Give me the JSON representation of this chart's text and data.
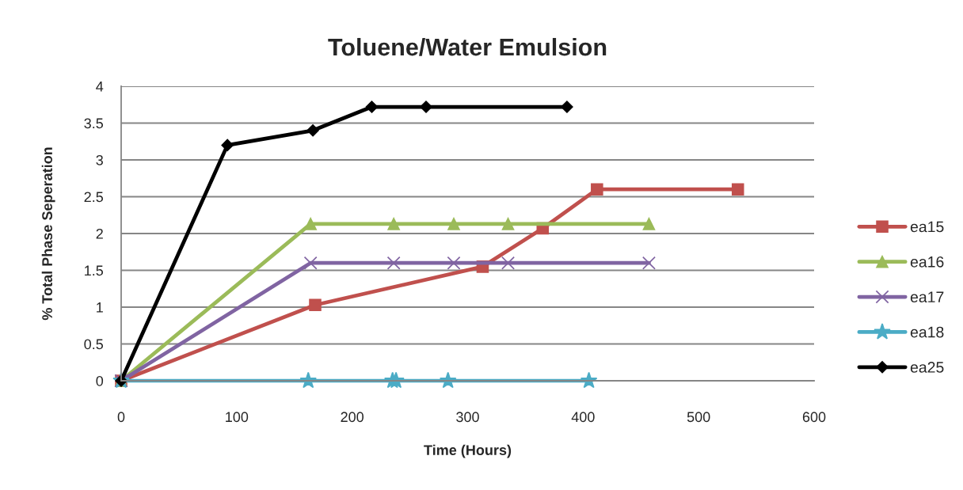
{
  "chart_data": {
    "type": "line",
    "title": "Toluene/Water Emulsion",
    "xlabel": "Time (Hours)",
    "ylabel": "% Total Phase Seperation",
    "xlim": [
      0,
      600
    ],
    "xticks": [
      0,
      100,
      200,
      300,
      400,
      500,
      600
    ],
    "ylim": [
      0,
      4
    ],
    "yticks": [
      0,
      0.5,
      1,
      1.5,
      2,
      2.5,
      3,
      3.5,
      4
    ],
    "grid": "y",
    "legend": "right",
    "line_style": "solid",
    "series": [
      {
        "name": "ea15",
        "color": "#c0504d",
        "marker": "square",
        "x": [
          0,
          168,
          313,
          365,
          412,
          534
        ],
        "values": [
          0,
          1.03,
          1.55,
          2.07,
          2.6,
          2.6
        ]
      },
      {
        "name": "ea16",
        "color": "#9bbb59",
        "marker": "triangle",
        "x": [
          0,
          164,
          236,
          288,
          335,
          457
        ],
        "values": [
          0,
          2.13,
          2.13,
          2.13,
          2.13,
          2.13
        ]
      },
      {
        "name": "ea17",
        "color": "#8064a2",
        "marker": "cross",
        "x": [
          0,
          164,
          236,
          288,
          335,
          457
        ],
        "values": [
          0,
          1.6,
          1.6,
          1.6,
          1.6,
          1.6
        ]
      },
      {
        "name": "ea18",
        "color": "#4bacc6",
        "marker": "star",
        "x": [
          0,
          162,
          235,
          238,
          283,
          405
        ],
        "values": [
          0,
          0,
          0,
          0,
          0,
          0
        ]
      },
      {
        "name": "ea25",
        "color": "#000000",
        "marker": "diamond",
        "x": [
          0,
          92,
          166,
          217,
          264,
          386
        ],
        "values": [
          0,
          3.2,
          3.4,
          3.72,
          3.72,
          3.72
        ]
      }
    ]
  }
}
